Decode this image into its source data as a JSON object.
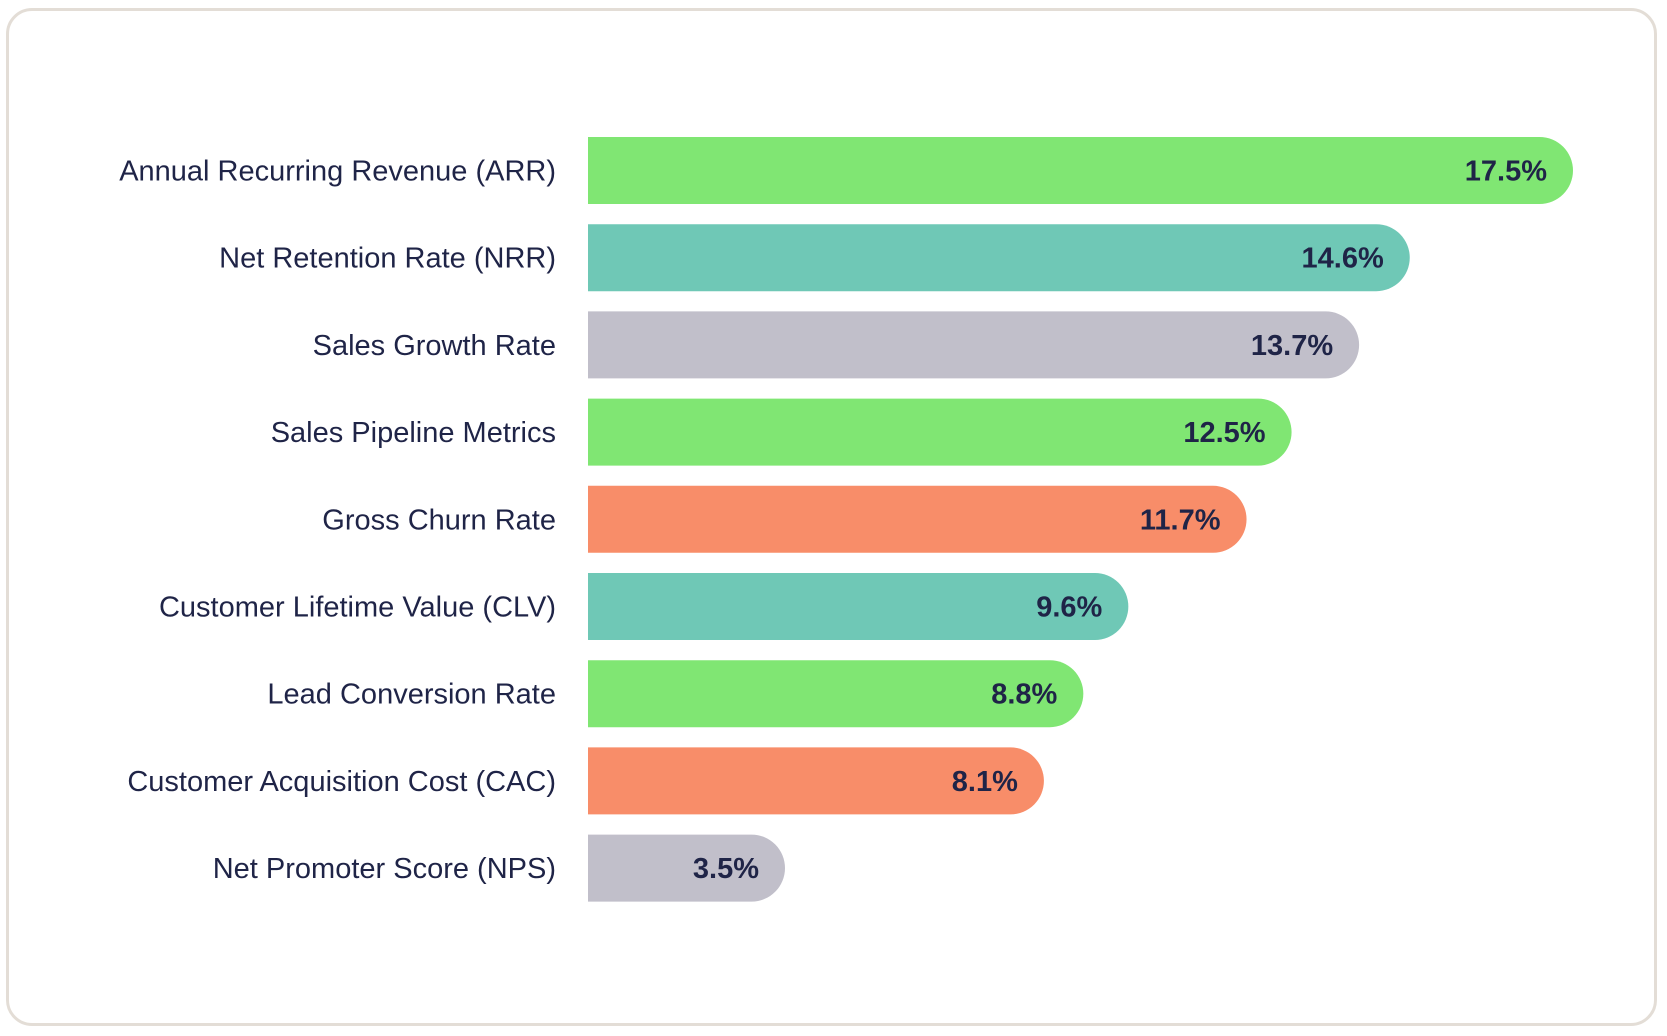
{
  "chart_data": {
    "type": "bar",
    "orientation": "horizontal",
    "title": "",
    "xlabel": "",
    "ylabel": "",
    "xlim": [
      0,
      17.5
    ],
    "grid": false,
    "categories": [
      "Annual Recurring Revenue (ARR)",
      "Net Retention Rate (NRR)",
      "Sales Growth Rate",
      "Sales Pipeline Metrics",
      "Gross Churn Rate",
      "Customer Lifetime Value (CLV)",
      "Lead Conversion Rate",
      "Customer Acquisition Cost (CAC)",
      "Net Promoter Score (NPS)"
    ],
    "values": [
      17.5,
      14.6,
      13.7,
      12.5,
      11.7,
      9.6,
      8.8,
      8.1,
      3.5
    ],
    "value_labels": [
      "17.5%",
      "14.6%",
      "13.7%",
      "12.5%",
      "11.7%",
      "9.6%",
      "8.8%",
      "8.1%",
      "3.5%"
    ],
    "colors": [
      "#80e673",
      "#6fc8b6",
      "#c1bfca",
      "#80e673",
      "#f88d69",
      "#6fc8b6",
      "#80e673",
      "#f88d69",
      "#c1bfca"
    ]
  },
  "style": {
    "card_border_color": "#e3ddd6",
    "text_color": "#1f2447"
  }
}
